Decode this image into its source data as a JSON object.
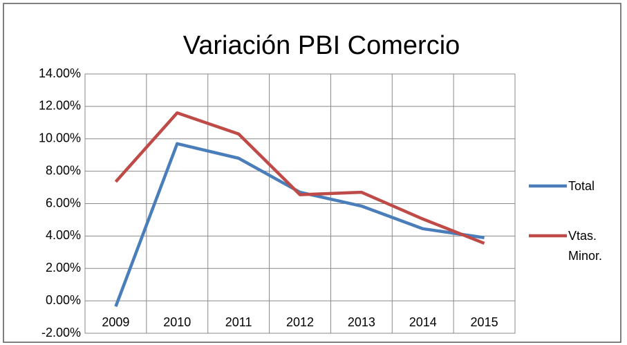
{
  "chart_data": {
    "type": "line",
    "title": "Variación PBI Comercio",
    "categories": [
      "2009",
      "2010",
      "2011",
      "2012",
      "2013",
      "2014",
      "2015"
    ],
    "series": [
      {
        "name": "Total",
        "color": "#4a7ebb",
        "values": [
          -0.35,
          9.7,
          8.8,
          6.7,
          5.85,
          4.45,
          3.9
        ]
      },
      {
        "name": "Vtas. Minor.",
        "color": "#be4b48",
        "values": [
          7.35,
          11.6,
          10.3,
          6.55,
          6.7,
          5.05,
          3.55
        ]
      }
    ],
    "ylim": [
      -2,
      14
    ],
    "yticks": [
      {
        "value": -2,
        "label": "-2.00%"
      },
      {
        "value": 0,
        "label": "0.00%"
      },
      {
        "value": 2,
        "label": "2.00%"
      },
      {
        "value": 4,
        "label": "4.00%"
      },
      {
        "value": 6,
        "label": "6.00%"
      },
      {
        "value": 8,
        "label": "8.00%"
      },
      {
        "value": 10,
        "label": "10.00%"
      },
      {
        "value": 12,
        "label": "12.00%"
      },
      {
        "value": 14,
        "label": "14.00%"
      }
    ],
    "grid": true,
    "legend": "right"
  }
}
